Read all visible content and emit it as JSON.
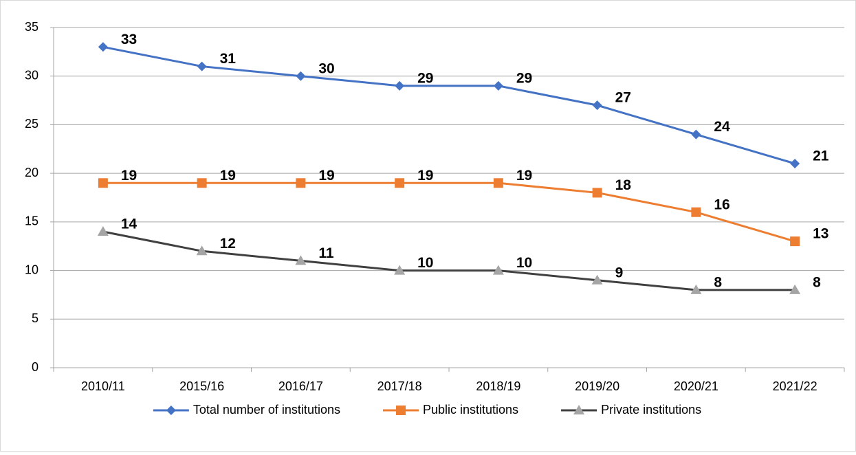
{
  "chart_data": {
    "type": "line",
    "categories": [
      "2010/11",
      "2015/16",
      "2016/17",
      "2017/18",
      "2018/19",
      "2019/20",
      "2020/21",
      "2021/22"
    ],
    "series": [
      {
        "name": "Total number of institutions",
        "color": "#4472c4",
        "marker": "diamond",
        "marker_color": "#4472c4",
        "values": [
          33,
          31,
          30,
          29,
          29,
          27,
          24,
          21
        ]
      },
      {
        "name": "Public institutions",
        "color": "#ed7d31",
        "marker": "square",
        "marker_color": "#ed7d31",
        "values": [
          19,
          19,
          19,
          19,
          19,
          18,
          16,
          13
        ]
      },
      {
        "name": "Private institutions",
        "color": "#404040",
        "marker": "triangle",
        "marker_color": "#a5a5a5",
        "values": [
          14,
          12,
          11,
          10,
          10,
          9,
          8,
          8
        ]
      }
    ],
    "ylim": [
      0,
      35
    ],
    "yticks": [
      0,
      5,
      10,
      15,
      20,
      25,
      30,
      35
    ],
    "grid": true,
    "legend": "bottom"
  }
}
